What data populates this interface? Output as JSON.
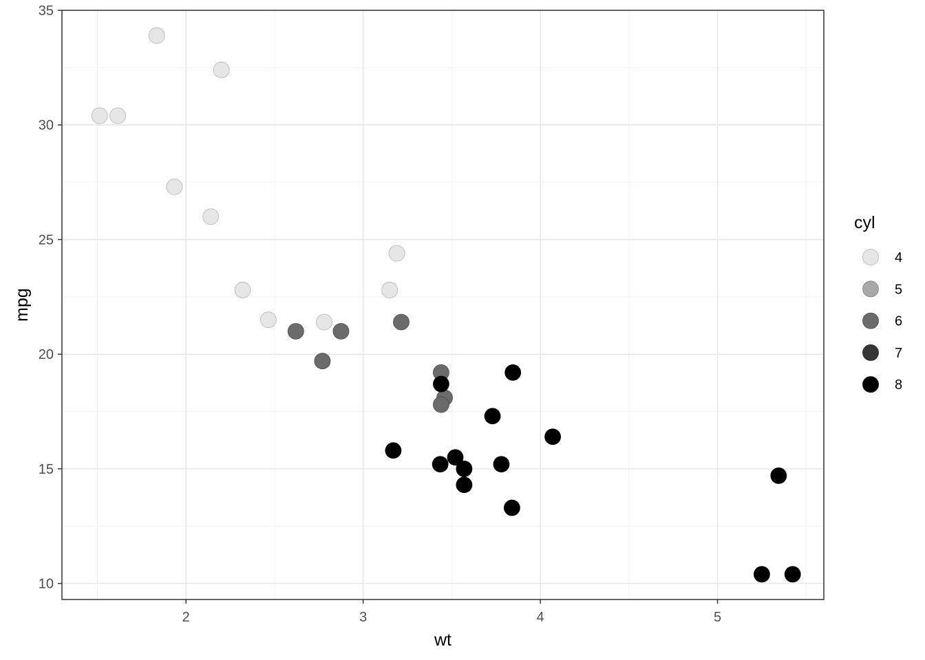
{
  "chart_data": {
    "type": "scatter",
    "title": "",
    "xlabel": "wt",
    "ylabel": "mpg",
    "xlim": [
      1.3,
      5.6
    ],
    "ylim": [
      9.3,
      35
    ],
    "x_ticks": [
      2,
      3,
      4,
      5
    ],
    "x_tick_labels": [
      "2",
      "3",
      "4",
      "5"
    ],
    "y_ticks": [
      10,
      15,
      20,
      25,
      30,
      35
    ],
    "y_tick_labels": [
      "10",
      "15",
      "20",
      "25",
      "30",
      "35"
    ],
    "grid": true,
    "theme": "bw",
    "legend": {
      "title": "cyl",
      "placement": "right",
      "entries": [
        {
          "label": "4",
          "color": "#e6e6e6",
          "stroke": "#b3b3b3"
        },
        {
          "label": "5",
          "color": "#a8a8a8",
          "stroke": "#808080"
        },
        {
          "label": "6",
          "color": "#6b6b6b",
          "stroke": "#4a4a4a"
        },
        {
          "label": "7",
          "color": "#363636",
          "stroke": "#1a1a1a"
        },
        {
          "label": "8",
          "color": "#000000",
          "stroke": "#000000"
        }
      ]
    },
    "points": [
      {
        "x": 2.62,
        "y": 21.0,
        "cyl": 6
      },
      {
        "x": 2.875,
        "y": 21.0,
        "cyl": 6
      },
      {
        "x": 2.32,
        "y": 22.8,
        "cyl": 4
      },
      {
        "x": 3.215,
        "y": 21.4,
        "cyl": 6
      },
      {
        "x": 3.44,
        "y": 18.7,
        "cyl": 8
      },
      {
        "x": 3.46,
        "y": 18.1,
        "cyl": 6
      },
      {
        "x": 3.57,
        "y": 14.3,
        "cyl": 8
      },
      {
        "x": 3.19,
        "y": 24.4,
        "cyl": 4
      },
      {
        "x": 3.15,
        "y": 22.8,
        "cyl": 4
      },
      {
        "x": 3.44,
        "y": 19.2,
        "cyl": 6
      },
      {
        "x": 3.44,
        "y": 17.8,
        "cyl": 6
      },
      {
        "x": 4.07,
        "y": 16.4,
        "cyl": 8
      },
      {
        "x": 3.73,
        "y": 17.3,
        "cyl": 8
      },
      {
        "x": 3.78,
        "y": 15.2,
        "cyl": 8
      },
      {
        "x": 5.25,
        "y": 10.4,
        "cyl": 8
      },
      {
        "x": 5.424,
        "y": 10.4,
        "cyl": 8
      },
      {
        "x": 5.345,
        "y": 14.7,
        "cyl": 8
      },
      {
        "x": 2.2,
        "y": 32.4,
        "cyl": 4
      },
      {
        "x": 1.615,
        "y": 30.4,
        "cyl": 4
      },
      {
        "x": 1.835,
        "y": 33.9,
        "cyl": 4
      },
      {
        "x": 2.465,
        "y": 21.5,
        "cyl": 4
      },
      {
        "x": 3.52,
        "y": 15.5,
        "cyl": 8
      },
      {
        "x": 3.435,
        "y": 15.2,
        "cyl": 8
      },
      {
        "x": 3.84,
        "y": 13.3,
        "cyl": 8
      },
      {
        "x": 3.845,
        "y": 19.2,
        "cyl": 8
      },
      {
        "x": 1.935,
        "y": 27.3,
        "cyl": 4
      },
      {
        "x": 2.14,
        "y": 26.0,
        "cyl": 4
      },
      {
        "x": 1.513,
        "y": 30.4,
        "cyl": 4
      },
      {
        "x": 3.17,
        "y": 15.8,
        "cyl": 8
      },
      {
        "x": 2.77,
        "y": 19.7,
        "cyl": 6
      },
      {
        "x": 3.57,
        "y": 15.0,
        "cyl": 8
      },
      {
        "x": 2.78,
        "y": 21.4,
        "cyl": 4
      }
    ]
  }
}
